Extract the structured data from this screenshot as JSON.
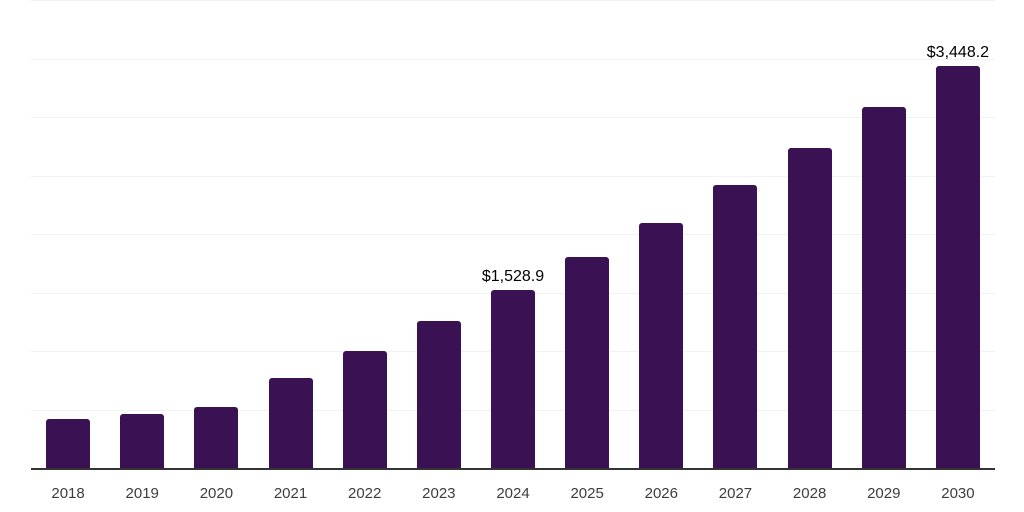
{
  "chart_data": {
    "type": "bar",
    "title": "",
    "xlabel": "",
    "ylabel": "",
    "categories": [
      "2018",
      "2019",
      "2020",
      "2021",
      "2022",
      "2023",
      "2024",
      "2025",
      "2026",
      "2027",
      "2028",
      "2029",
      "2030"
    ],
    "values": [
      426,
      474,
      532,
      774,
      1007,
      1263,
      1528.9,
      1810,
      2104,
      2426,
      2745,
      3096,
      3448.2
    ],
    "data_labels": [
      "",
      "",
      "",
      "",
      "",
      "",
      "$1,528.9",
      "",
      "",
      "",
      "",
      "",
      "$3,448.2"
    ],
    "ylim": [
      0,
      4000
    ],
    "gridline_step": 500,
    "grid": "horizontal",
    "y_tick_labels_visible": false,
    "legend_position": "none",
    "colors": {
      "bar": "#3a1153",
      "axis_line": "#333333",
      "gridline": "#f2f2f2",
      "data_label": "#000000",
      "tick_label": "#3d3d3d",
      "background": "#ffffff"
    }
  }
}
